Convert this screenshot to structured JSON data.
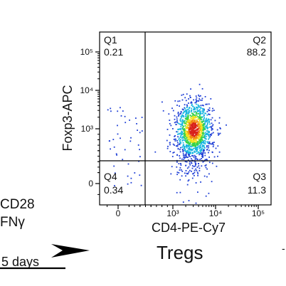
{
  "left_text": {
    "line1": "CD28",
    "line2": "FNγ",
    "arrow_label": "5 days"
  },
  "bottom_title": "Tregs",
  "chart_data": {
    "type": "scatter",
    "subtype": "flow-cytometry-density-plot",
    "title": "",
    "xlabel": "CD4-PE-Cy7",
    "ylabel": "Foxp3-APC",
    "x_scale": "biexponential",
    "y_scale": "biexponential",
    "x_ticks": [
      "0",
      "10³",
      "10⁴",
      "10⁵"
    ],
    "y_ticks": [
      "0",
      "10³",
      "10⁴",
      "10⁵"
    ],
    "quadrants": [
      {
        "name": "Q1",
        "percent": "0.21",
        "position": "top-left"
      },
      {
        "name": "Q2",
        "percent": "88.2",
        "position": "top-right"
      },
      {
        "name": "Q3",
        "percent": "11.3",
        "position": "bottom-right"
      },
      {
        "name": "Q4",
        "percent": "0.34",
        "position": "bottom-left"
      }
    ],
    "population_center": {
      "x": 3000,
      "y": 1000
    },
    "density_colors": [
      "#1f3fd6",
      "#19b6e0",
      "#35d24a",
      "#f2e21a",
      "#f28a10",
      "#d8201a"
    ],
    "grid": false,
    "legend": "none"
  }
}
